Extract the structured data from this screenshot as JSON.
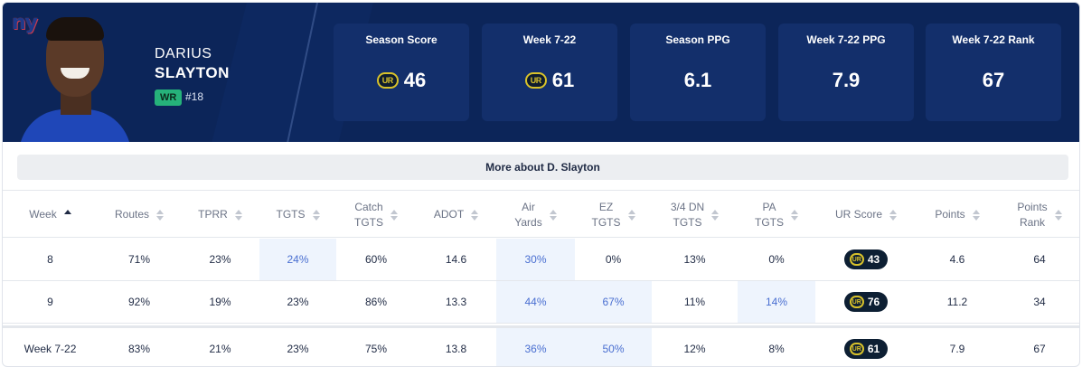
{
  "player": {
    "first_name": "DARIUS",
    "last_name": "SLAYTON",
    "position": "WR",
    "jersey": "#18",
    "team_logo_text": "ny"
  },
  "stat_boxes": [
    {
      "label": "Season Score",
      "value": "46",
      "has_ur_logo": true
    },
    {
      "label": "Week 7-22",
      "value": "61",
      "has_ur_logo": true
    },
    {
      "label": "Season PPG",
      "value": "6.1",
      "has_ur_logo": false
    },
    {
      "label": "Week 7-22 PPG",
      "value": "7.9",
      "has_ur_logo": false
    },
    {
      "label": "Week 7-22 Rank",
      "value": "67",
      "has_ur_logo": false
    }
  ],
  "ur_logo_text": "UR",
  "more_about": "More about D. Slayton",
  "table": {
    "columns": [
      {
        "label": "Week",
        "sub": ""
      },
      {
        "label": "Routes",
        "sub": ""
      },
      {
        "label": "TPRR",
        "sub": ""
      },
      {
        "label": "TGTS",
        "sub": ""
      },
      {
        "label": "Catch",
        "sub": "TGTS"
      },
      {
        "label": "ADOT",
        "sub": ""
      },
      {
        "label": "Air",
        "sub": "Yards"
      },
      {
        "label": "EZ",
        "sub": "TGTS"
      },
      {
        "label": "3/4 DN",
        "sub": "TGTS"
      },
      {
        "label": "PA",
        "sub": "TGTS"
      },
      {
        "label": "UR Score",
        "sub": ""
      },
      {
        "label": "Points",
        "sub": ""
      },
      {
        "label": "Points",
        "sub": "Rank"
      }
    ],
    "rows": [
      [
        "8",
        "71%",
        "23%",
        "24%",
        "60%",
        "14.6",
        "30%",
        "0%",
        "13%",
        "0%",
        "43",
        "4.6",
        "64"
      ],
      [
        "9",
        "92%",
        "19%",
        "23%",
        "86%",
        "13.3",
        "44%",
        "67%",
        "11%",
        "14%",
        "76",
        "11.2",
        "34"
      ]
    ],
    "total_row": [
      "Week 7-22",
      "83%",
      "21%",
      "23%",
      "75%",
      "13.8",
      "36%",
      "50%",
      "12%",
      "8%",
      "61",
      "7.9",
      "67"
    ]
  },
  "colors": {
    "header_bg": "#0c2559",
    "stat_box_bg": "#132f6b",
    "position_badge": "#26b27a",
    "highlight_cell": "#eef4fd",
    "highlight_text": "#4a6fd1",
    "ur_pill_bg": "#0d1f33",
    "ur_logo_accent": "#d8c22b"
  },
  "icons": [
    "team-logo-icon",
    "sort-icon",
    "ur-logo-icon"
  ]
}
